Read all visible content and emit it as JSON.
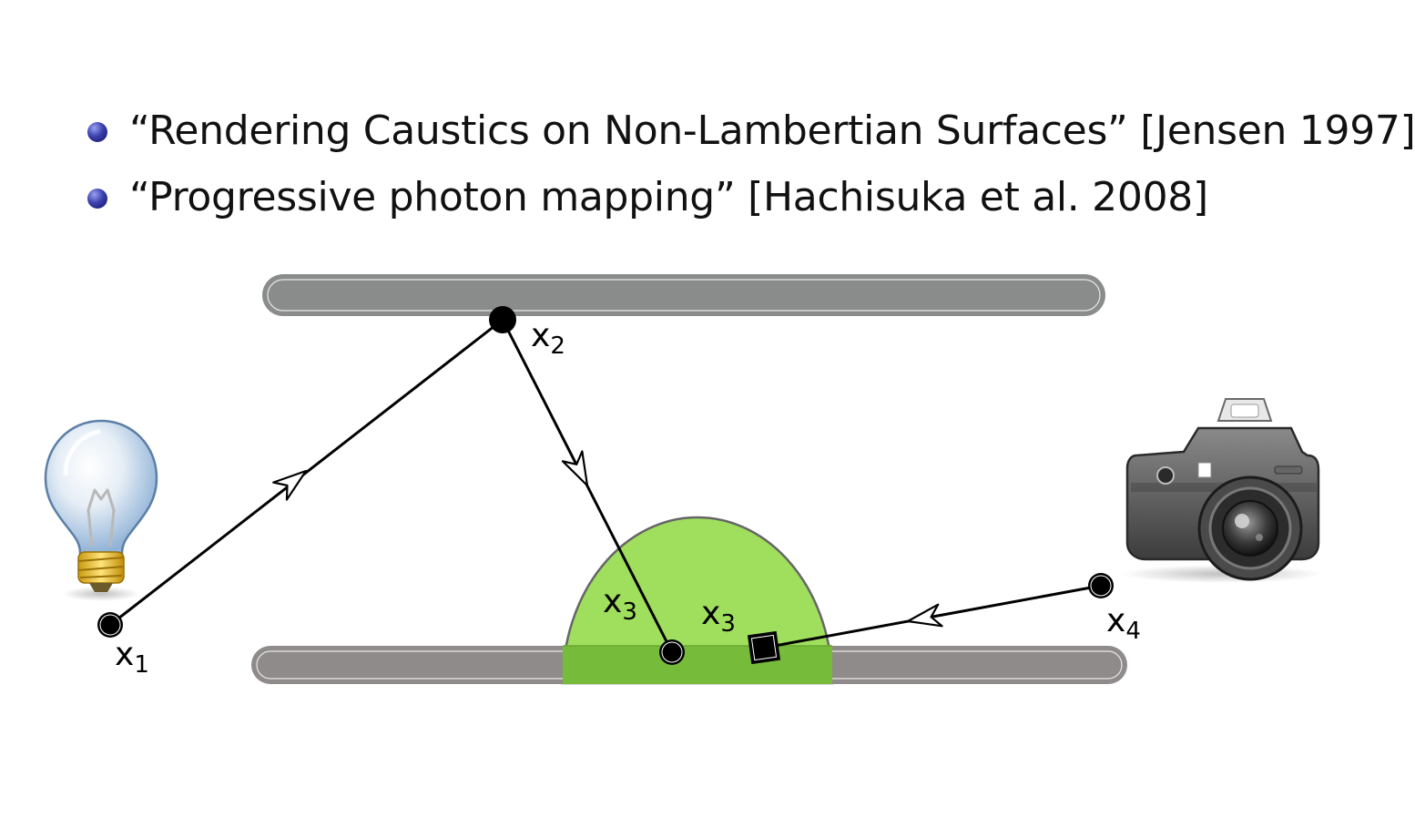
{
  "bullets": [
    {
      "text": "“Rendering Caustics on Non-Lambertian Surfaces” [Jensen 1997]"
    },
    {
      "text": "“Progressive photon mapping” [Hachisuka et al. 2008]"
    }
  ],
  "diagram": {
    "vertices": [
      {
        "base": "x",
        "sub": "1"
      },
      {
        "base": "x",
        "sub": "2"
      },
      {
        "base": "x",
        "sub": "3"
      },
      {
        "base": "x",
        "sub": "3"
      },
      {
        "base": "x",
        "sub": "4"
      }
    ],
    "icons": [
      "light-bulb-icon",
      "camera-icon"
    ],
    "colors": {
      "surface": "#8a8c8c",
      "surface_bottom": "#8e8b8a",
      "radius_fill": "#9fdf5d",
      "radius_overlap": "#77bb3a",
      "path": "#000000"
    }
  }
}
